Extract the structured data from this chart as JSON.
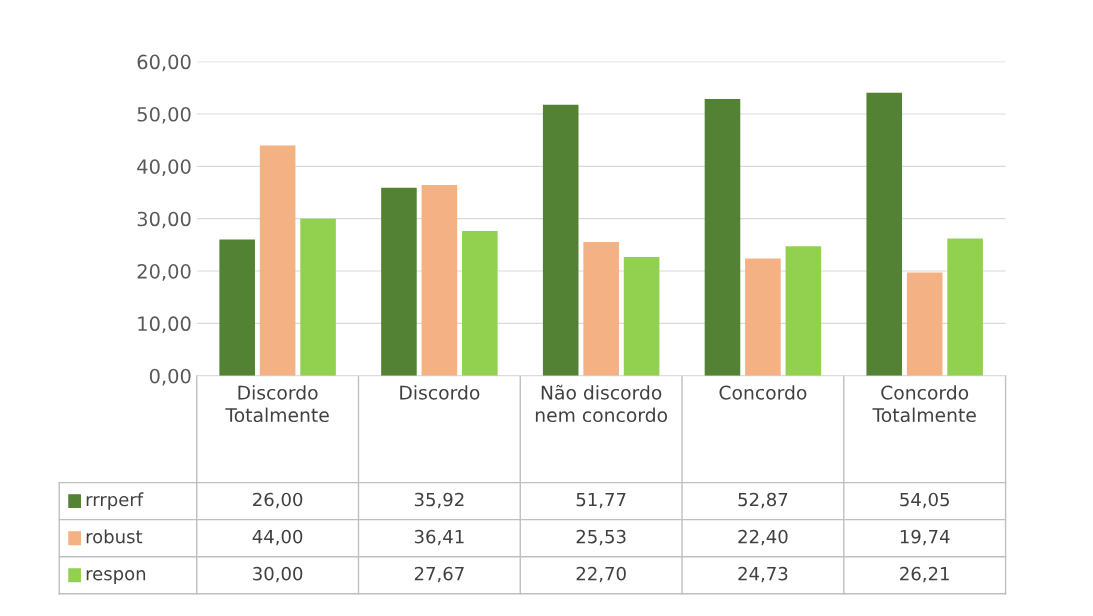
{
  "chart_data": {
    "type": "bar",
    "categories": [
      "Discordo Totalmente",
      "Discordo",
      "Não discordo nem concordo",
      "Concordo",
      "Concordo Totalmente"
    ],
    "series": [
      {
        "name": "rrrperf",
        "color": "#548235",
        "values": [
          26.0,
          35.92,
          51.77,
          52.87,
          54.05
        ],
        "value_labels": [
          "26,00",
          "35,92",
          "51,77",
          "52,87",
          "54,05"
        ]
      },
      {
        "name": "robust",
        "color": "#f4b183",
        "values": [
          44.0,
          36.41,
          25.53,
          22.4,
          19.74
        ],
        "value_labels": [
          "44,00",
          "36,41",
          "25,53",
          "22,40",
          "19,74"
        ]
      },
      {
        "name": "respon",
        "color": "#92d050",
        "values": [
          30.0,
          27.67,
          22.7,
          24.73,
          26.21
        ],
        "value_labels": [
          "30,00",
          "27,67",
          "22,70",
          "24,73",
          "26,21"
        ]
      }
    ],
    "ylim": [
      0,
      60
    ],
    "yticks": [
      {
        "value": 0,
        "label": "0,00"
      },
      {
        "value": 10,
        "label": "10,00"
      },
      {
        "value": 20,
        "label": "20,00"
      },
      {
        "value": 30,
        "label": "30,00"
      },
      {
        "value": 40,
        "label": "40,00"
      },
      {
        "value": 50,
        "label": "50,00"
      },
      {
        "value": 60,
        "label": "60,00"
      }
    ],
    "grid": "y",
    "legend": "bottom"
  }
}
